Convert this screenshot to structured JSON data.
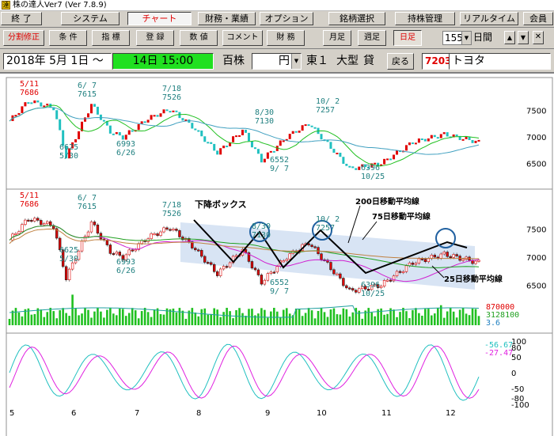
{
  "window": {
    "title": "株の達人Ver7 (Ver 7.8.9)",
    "icon": "app-icon",
    "icon_glyph": "達"
  },
  "menu": [
    {
      "label": "終 了"
    },
    {
      "label": "システム"
    },
    {
      "label": "チャート",
      "active": true
    },
    {
      "label": "財務・業績"
    },
    {
      "label": "オプション"
    },
    {
      "label": "銘柄選択"
    },
    {
      "label": "持株管理"
    },
    {
      "label": "リアルタイム"
    },
    {
      "label": "会員"
    }
  ],
  "toolbar": {
    "buttons": [
      "分割修正",
      "条 件",
      "指 標",
      "登 録",
      "数 値",
      "コメント",
      "財 務"
    ],
    "period_buttons": [
      "月足",
      "週足",
      "日足"
    ],
    "active_period": "日足",
    "days_value": "155",
    "days_label": "日間",
    "up_arrow": "▲",
    "down_arrow": "▼"
  },
  "info": {
    "date": "2018年 5月 1日 ～",
    "range_value": "14日 15:00",
    "unit": "百株",
    "currency": "円",
    "market": "東１",
    "size": "大型",
    "lending": "貸",
    "back_button": "戻る",
    "code": "7203",
    "name": "トヨタ"
  },
  "chart_data": [
    {
      "type": "candlestick",
      "panel": "upper (Heikin-ashi style)",
      "y_ticks": [
        7500,
        7000,
        6500
      ],
      "ylim": [
        6250,
        7750
      ],
      "annotations": [
        {
          "text": [
            "5/11",
            "7686"
          ],
          "at": "high"
        },
        {
          "text": [
            "6/ 7",
            "7615"
          ],
          "at": "high"
        },
        {
          "text": [
            "6625",
            "5/30"
          ],
          "at": "low"
        },
        {
          "text": [
            "6993",
            "6/26"
          ],
          "at": "low"
        },
        {
          "text": [
            "7/18",
            "7526"
          ],
          "at": "high"
        },
        {
          "text": [
            "8/30",
            "7130"
          ],
          "at": "high"
        },
        {
          "text": [
            "6552",
            "9/ 7"
          ],
          "at": "low"
        },
        {
          "text": [
            "10/ 2",
            "7257"
          ],
          "at": "high"
        },
        {
          "text": [
            "6396",
            "10/25"
          ],
          "at": "low"
        }
      ],
      "colors": {
        "up": "#e00000",
        "down": "#20c0c0",
        "ma_short": "#20c020",
        "ma_long": "#40a0c0"
      }
    },
    {
      "type": "candlestick",
      "panel": "middle (price with moving averages and descending channel)",
      "y_ticks": [
        7500,
        7000,
        6500
      ],
      "ylim": [
        6250,
        7800
      ],
      "annotations": [
        {
          "text": [
            "5/11",
            "7686"
          ]
        },
        {
          "text": [
            "6/ 7",
            "7615"
          ]
        },
        {
          "text": [
            "6625",
            "5/30"
          ]
        },
        {
          "text": [
            "6993",
            "6/26"
          ]
        },
        {
          "text": [
            "7/18",
            "7526"
          ]
        },
        {
          "text": [
            "8/30",
            "7130"
          ]
        },
        {
          "text": [
            "6552",
            "9/ 7"
          ]
        },
        {
          "text": [
            "10/ 2",
            "7257"
          ]
        },
        {
          "text": [
            "6396",
            "10/25"
          ]
        }
      ],
      "labels": {
        "channel": "下降ボックス",
        "ma200": "200日移動平均線",
        "ma75": "75日移動平均線",
        "ma25": "25日移動平均線"
      },
      "colors": {
        "up": "#e00000",
        "down": "#303030",
        "ma25": "#d020d0",
        "ma75": "#20a020",
        "ma200": "#c08040",
        "channel": "#c8d8f0",
        "trend": "#000000",
        "circle": "#2060a0"
      }
    },
    {
      "type": "bar",
      "panel": "volume",
      "labels": [
        "870000",
        "3128100",
        "3.6"
      ],
      "label_colors": [
        "#e00000",
        "#20a020",
        "#2080c0"
      ],
      "colors": {
        "bar": "#20c020",
        "ma": "#20a0a0"
      }
    },
    {
      "type": "line",
      "panel": "oscillator",
      "y_ticks": [
        100,
        80,
        50,
        0,
        -50,
        -80,
        -100
      ],
      "ylim": [
        -100,
        100
      ],
      "series": [
        {
          "value_label": "-56.67",
          "color": "#20c0c0"
        },
        {
          "value_label": "-27.47",
          "color": "#e020e0"
        }
      ]
    }
  ],
  "x_axis": {
    "ticks": [
      "5",
      "6",
      "7",
      "8",
      "9",
      "10",
      "11",
      "12"
    ]
  }
}
